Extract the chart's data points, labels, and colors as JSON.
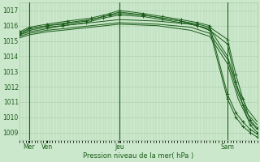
{
  "xlabel": "Pression niveau de la mer( hPa )",
  "bg_color": "#cce8cc",
  "grid_color": "#aaccaa",
  "line_color": "#1a5c1a",
  "tick_label_color": "#1a5c1a",
  "ylim": [
    1008.5,
    1017.5
  ],
  "yticks": [
    1009,
    1010,
    1011,
    1012,
    1013,
    1014,
    1015,
    1016,
    1017
  ],
  "xtick_labels": [
    "Mer",
    "Ven",
    "Jeu",
    "Sam"
  ],
  "xtick_positions": [
    0.04,
    0.115,
    0.42,
    0.875
  ],
  "vlines": [
    0.04,
    0.42,
    0.875
  ],
  "lines": [
    {
      "x": [
        0.0,
        0.04,
        0.115,
        0.18,
        0.28,
        0.35,
        0.42,
        0.52,
        0.6,
        0.68,
        0.75,
        0.8,
        0.875,
        0.91,
        0.94,
        0.97,
        1.0
      ],
      "y": [
        1015.5,
        1015.8,
        1016.0,
        1016.1,
        1016.3,
        1016.6,
        1016.8,
        1016.7,
        1016.5,
        1016.3,
        1016.1,
        1015.9,
        1015.1,
        1012.8,
        1011.2,
        1009.8,
        1009.3
      ],
      "marker": true
    },
    {
      "x": [
        0.0,
        0.04,
        0.115,
        0.18,
        0.28,
        0.35,
        0.42,
        0.52,
        0.6,
        0.68,
        0.75,
        0.8,
        0.875,
        0.91,
        0.94,
        0.97,
        1.0
      ],
      "y": [
        1015.4,
        1015.7,
        1015.9,
        1016.0,
        1016.2,
        1016.5,
        1016.7,
        1016.6,
        1016.4,
        1016.2,
        1016.0,
        1015.7,
        1014.8,
        1012.3,
        1010.8,
        1009.5,
        1009.0
      ],
      "marker": true
    },
    {
      "x": [
        0.0,
        0.04,
        0.115,
        0.18,
        0.3,
        0.42,
        0.58,
        0.72,
        0.8,
        0.875,
        0.92,
        0.96,
        1.0
      ],
      "y": [
        1015.3,
        1015.5,
        1015.7,
        1015.8,
        1016.0,
        1016.2,
        1016.1,
        1015.9,
        1015.5,
        1013.8,
        1011.5,
        1010.2,
        1009.5
      ],
      "marker": false
    },
    {
      "x": [
        0.0,
        0.04,
        0.115,
        0.18,
        0.3,
        0.42,
        0.58,
        0.72,
        0.8,
        0.875,
        0.92,
        0.96,
        1.0
      ],
      "y": [
        1015.2,
        1015.4,
        1015.6,
        1015.7,
        1015.9,
        1016.1,
        1016.0,
        1015.7,
        1015.3,
        1013.5,
        1011.2,
        1009.9,
        1009.2
      ],
      "marker": false
    },
    {
      "x": [
        0.0,
        0.04,
        0.115,
        0.18,
        0.3,
        0.42,
        0.58,
        0.72,
        0.8,
        0.875,
        0.92,
        0.96,
        1.0
      ],
      "y": [
        1015.4,
        1015.6,
        1015.8,
        1016.0,
        1016.2,
        1016.4,
        1016.3,
        1016.1,
        1015.8,
        1014.0,
        1011.8,
        1010.5,
        1009.7
      ],
      "marker": false
    },
    {
      "x": [
        0.0,
        0.04,
        0.115,
        0.2,
        0.3,
        0.38,
        0.42,
        0.52,
        0.6,
        0.68,
        0.75,
        0.8,
        0.875,
        0.91,
        0.94,
        0.97,
        1.0
      ],
      "y": [
        1015.6,
        1015.9,
        1016.1,
        1016.3,
        1016.5,
        1016.8,
        1017.0,
        1016.8,
        1016.6,
        1016.4,
        1016.2,
        1016.0,
        1011.5,
        1010.3,
        1009.7,
        1009.2,
        1008.9
      ],
      "marker": true
    },
    {
      "x": [
        0.0,
        0.04,
        0.115,
        0.2,
        0.3,
        0.38,
        0.42,
        0.52,
        0.6,
        0.68,
        0.75,
        0.8,
        0.875,
        0.91,
        0.94,
        0.97,
        1.0
      ],
      "y": [
        1015.5,
        1015.8,
        1016.0,
        1016.2,
        1016.4,
        1016.7,
        1016.9,
        1016.7,
        1016.5,
        1016.3,
        1016.0,
        1015.7,
        1011.2,
        1010.0,
        1009.4,
        1009.0,
        1008.7
      ],
      "marker": true
    }
  ]
}
